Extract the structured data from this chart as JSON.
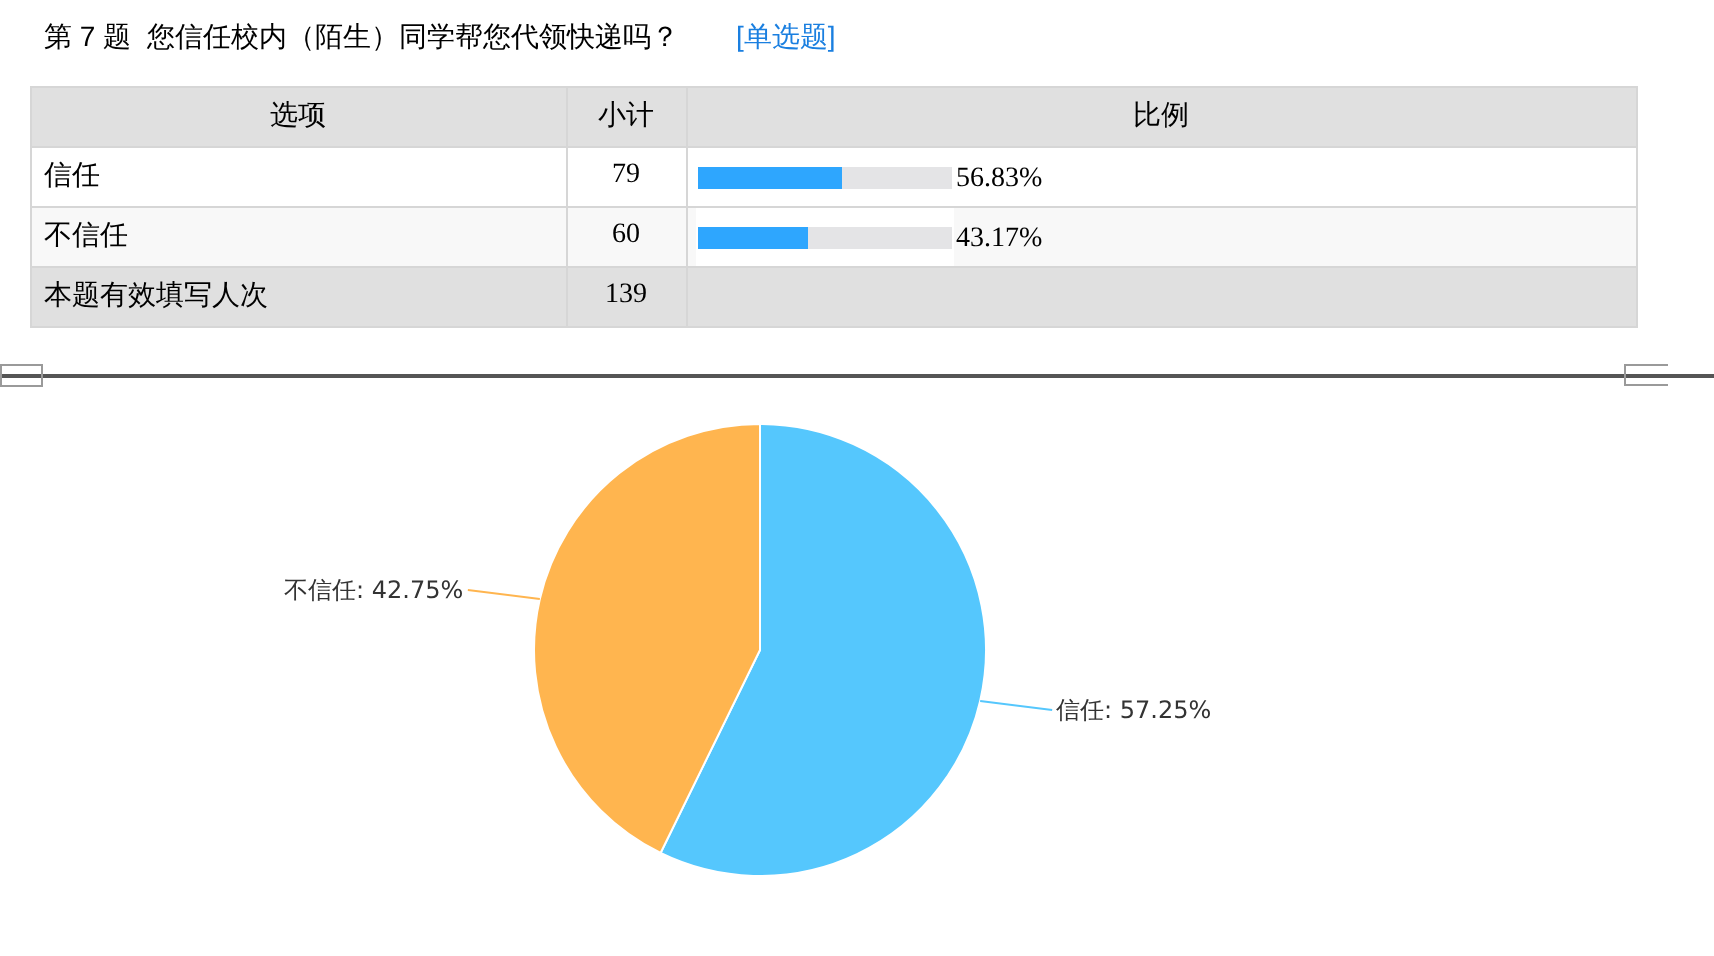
{
  "chart_data": [
    {
      "type": "bar",
      "orientation": "horizontal",
      "title": "第 7 题  您信任校内（陌生）同学帮您代领快递吗？",
      "subtitle": "[单选题]",
      "ylabel": "选项",
      "categories": [
        "信任",
        "不信任"
      ],
      "series": [
        {
          "color": "#2ea6fe",
          "values": [
            56.83,
            43.17
          ],
          "value_labels": [
            "56.83%",
            "43.17%"
          ]
        }
      ],
      "xlim": [
        0,
        100
      ],
      "tick_labels": "y",
      "annotations": [
        "小计",
        "比例",
        "79",
        "60",
        "本题有效填写人次",
        "139"
      ]
    },
    {
      "type": "pie",
      "categories": [
        "信任",
        "不信任"
      ],
      "values": [
        57.25,
        42.75
      ],
      "colors": [
        "#55c7fd",
        "#ffb54f"
      ],
      "value_labels": [
        "57.25%",
        "42.75%"
      ]
    }
  ]
}
